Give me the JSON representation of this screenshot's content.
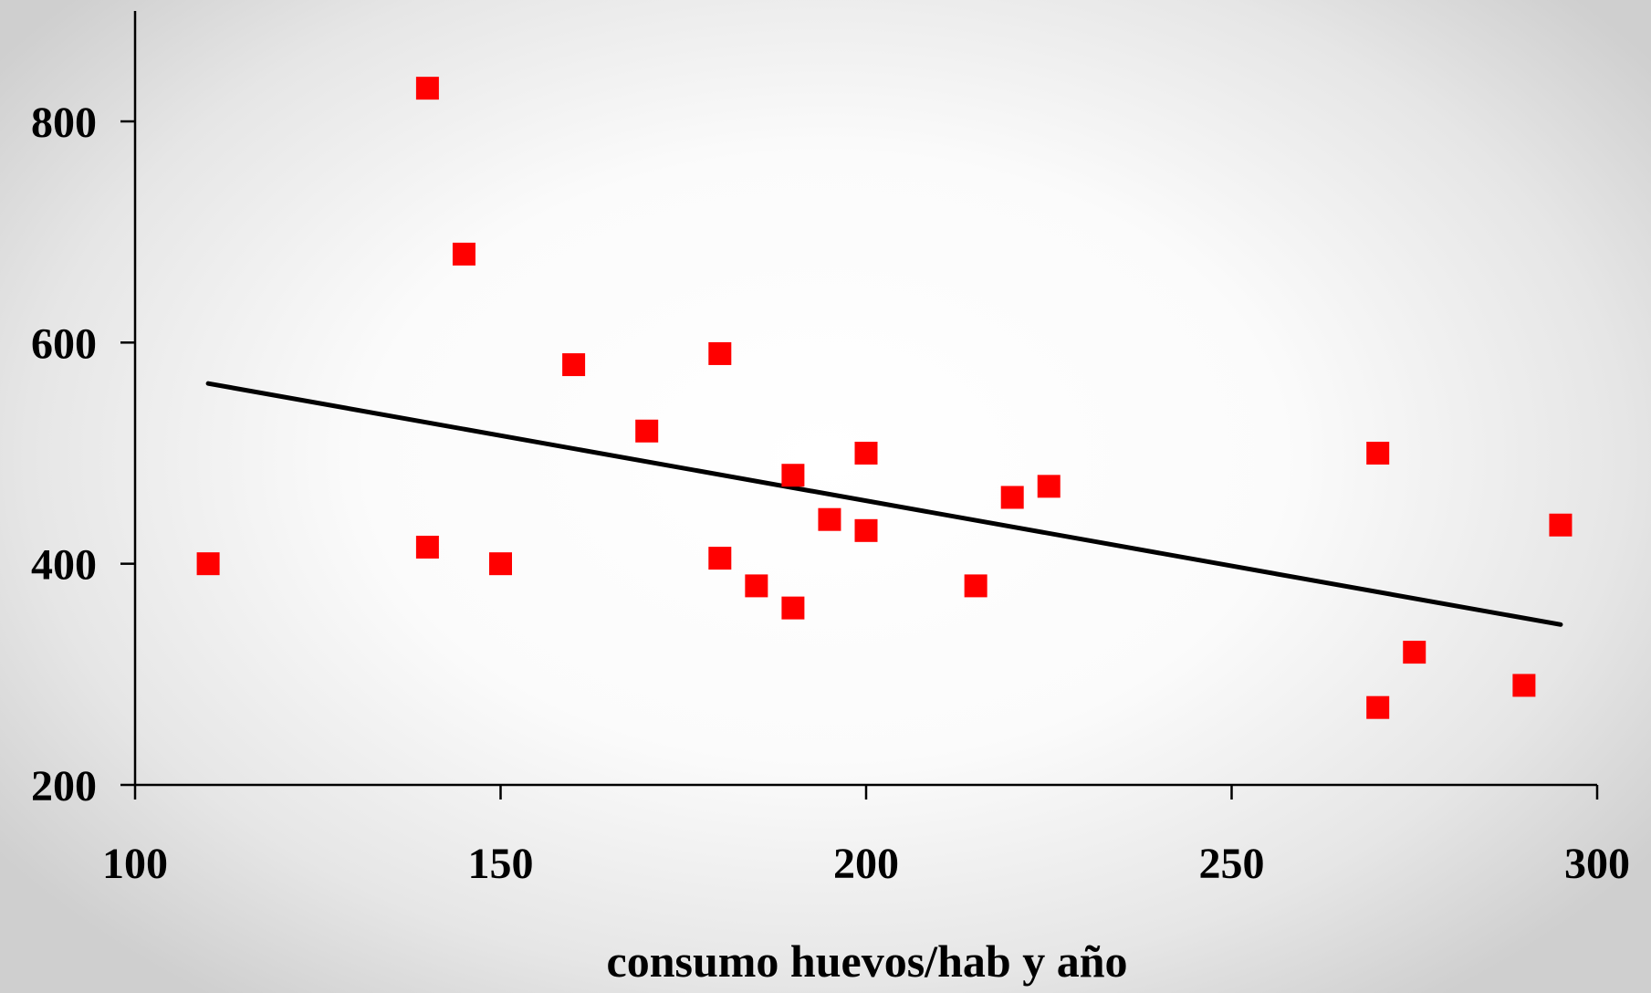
{
  "chart_data": {
    "type": "scatter",
    "xlabel": "consumo huevos/hab y año",
    "ylabel": "",
    "xlim": [
      100,
      300
    ],
    "ylim": [
      200,
      900
    ],
    "x_ticks": [
      100,
      150,
      200,
      250,
      300
    ],
    "y_ticks": [
      200,
      400,
      600,
      800
    ],
    "x_tick_labels": [
      "100",
      "150",
      "200",
      "250",
      "300"
    ],
    "y_tick_labels": [
      "200",
      "400",
      "600",
      "800"
    ],
    "grid": false,
    "legend": "none",
    "series": [
      {
        "type": "scatter",
        "marker": "square",
        "color": "#ff0000",
        "points": [
          {
            "x": 110,
            "y": 400
          },
          {
            "x": 140,
            "y": 830
          },
          {
            "x": 140,
            "y": 415
          },
          {
            "x": 145,
            "y": 680
          },
          {
            "x": 150,
            "y": 400
          },
          {
            "x": 160,
            "y": 580
          },
          {
            "x": 170,
            "y": 520
          },
          {
            "x": 180,
            "y": 590
          },
          {
            "x": 180,
            "y": 405
          },
          {
            "x": 185,
            "y": 380
          },
          {
            "x": 190,
            "y": 480
          },
          {
            "x": 190,
            "y": 360
          },
          {
            "x": 195,
            "y": 440
          },
          {
            "x": 200,
            "y": 500
          },
          {
            "x": 200,
            "y": 430
          },
          {
            "x": 215,
            "y": 380
          },
          {
            "x": 220,
            "y": 460
          },
          {
            "x": 225,
            "y": 470
          },
          {
            "x": 270,
            "y": 500
          },
          {
            "x": 270,
            "y": 270
          },
          {
            "x": 275,
            "y": 320
          },
          {
            "x": 290,
            "y": 290
          },
          {
            "x": 295,
            "y": 435
          }
        ]
      },
      {
        "type": "line",
        "color": "#000000",
        "points": [
          {
            "x": 110,
            "y": 563
          },
          {
            "x": 295,
            "y": 345
          }
        ]
      }
    ]
  }
}
